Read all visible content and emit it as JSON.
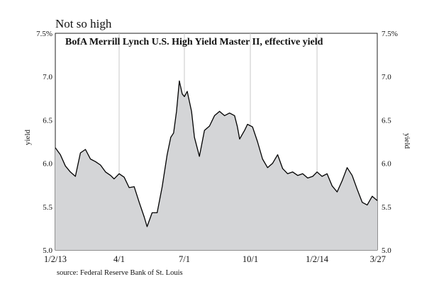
{
  "chart_data": {
    "type": "area",
    "title": "Not so high",
    "subtitle": "BofA Merrill Lynch U.S. High Yield Master II, effective yield",
    "ylabel_left": "yield",
    "ylabel_right": "yield",
    "source": "source: Federal Reserve Bank of St. Louis",
    "ylim": [
      5.0,
      7.5
    ],
    "y_ticks": [
      "5.0",
      "5.5",
      "6.0",
      "6.5",
      "7.0",
      "7.5%"
    ],
    "y_ticks_right": [
      "5.0",
      "5.5",
      "6.0",
      "6.5",
      "7.0",
      "7.5%"
    ],
    "y_tick_values": [
      5.0,
      5.5,
      6.0,
      6.5,
      7.0,
      7.5
    ],
    "x_ticks": [
      "1/2/13",
      "4/1",
      "7/1",
      "10/1",
      "1/2/14",
      "3/27"
    ],
    "x_tick_dates": [
      "2013-01-02",
      "2013-04-01",
      "2013-07-01",
      "2013-10-01",
      "2014-01-02",
      "2014-03-27"
    ],
    "x_range": [
      "2013-01-02",
      "2014-03-27"
    ],
    "grid": "vertical",
    "fill_color": "#d4d5d7",
    "line_color": "#000000",
    "series": [
      {
        "x": [
          "2013-01-02",
          "2013-01-09",
          "2013-01-16",
          "2013-01-23",
          "2013-01-30",
          "2013-02-06",
          "2013-02-13",
          "2013-02-20",
          "2013-02-27",
          "2013-03-06",
          "2013-03-13",
          "2013-03-20",
          "2013-03-25",
          "2013-04-01",
          "2013-04-08",
          "2013-04-15",
          "2013-04-22",
          "2013-04-29",
          "2013-05-06",
          "2013-05-10",
          "2013-05-17",
          "2013-05-24",
          "2013-05-31",
          "2013-06-07",
          "2013-06-12",
          "2013-06-16",
          "2013-06-20",
          "2013-06-24",
          "2013-06-28",
          "2013-07-01",
          "2013-07-05",
          "2013-07-11",
          "2013-07-15",
          "2013-07-22",
          "2013-07-29",
          "2013-08-05",
          "2013-08-12",
          "2013-08-19",
          "2013-08-26",
          "2013-09-02",
          "2013-09-09",
          "2013-09-13",
          "2013-09-16",
          "2013-09-23",
          "2013-09-27",
          "2013-10-04",
          "2013-10-11",
          "2013-10-18",
          "2013-10-25",
          "2013-11-01",
          "2013-11-08",
          "2013-11-15",
          "2013-11-22",
          "2013-11-29",
          "2013-12-06",
          "2013-12-13",
          "2013-12-20",
          "2013-12-27",
          "2014-01-02",
          "2014-01-09",
          "2014-01-16",
          "2014-01-23",
          "2014-01-30",
          "2014-02-06",
          "2014-02-13",
          "2014-02-20",
          "2014-02-27",
          "2014-03-06",
          "2014-03-13",
          "2014-03-20",
          "2014-03-27"
        ],
        "y": [
          6.18,
          6.1,
          5.97,
          5.9,
          5.85,
          6.12,
          6.16,
          6.05,
          6.02,
          5.98,
          5.9,
          5.86,
          5.82,
          5.88,
          5.84,
          5.72,
          5.73,
          5.55,
          5.38,
          5.27,
          5.43,
          5.43,
          5.73,
          6.1,
          6.3,
          6.35,
          6.6,
          6.95,
          6.8,
          6.77,
          6.83,
          6.6,
          6.3,
          6.08,
          6.38,
          6.43,
          6.55,
          6.6,
          6.55,
          6.58,
          6.55,
          6.42,
          6.28,
          6.38,
          6.45,
          6.42,
          6.25,
          6.05,
          5.95,
          6.0,
          6.1,
          5.94,
          5.88,
          5.9,
          5.86,
          5.88,
          5.83,
          5.85,
          5.9,
          5.85,
          5.88,
          5.74,
          5.67,
          5.8,
          5.95,
          5.86,
          5.7,
          5.55,
          5.52,
          5.62,
          5.57
        ]
      }
    ]
  }
}
